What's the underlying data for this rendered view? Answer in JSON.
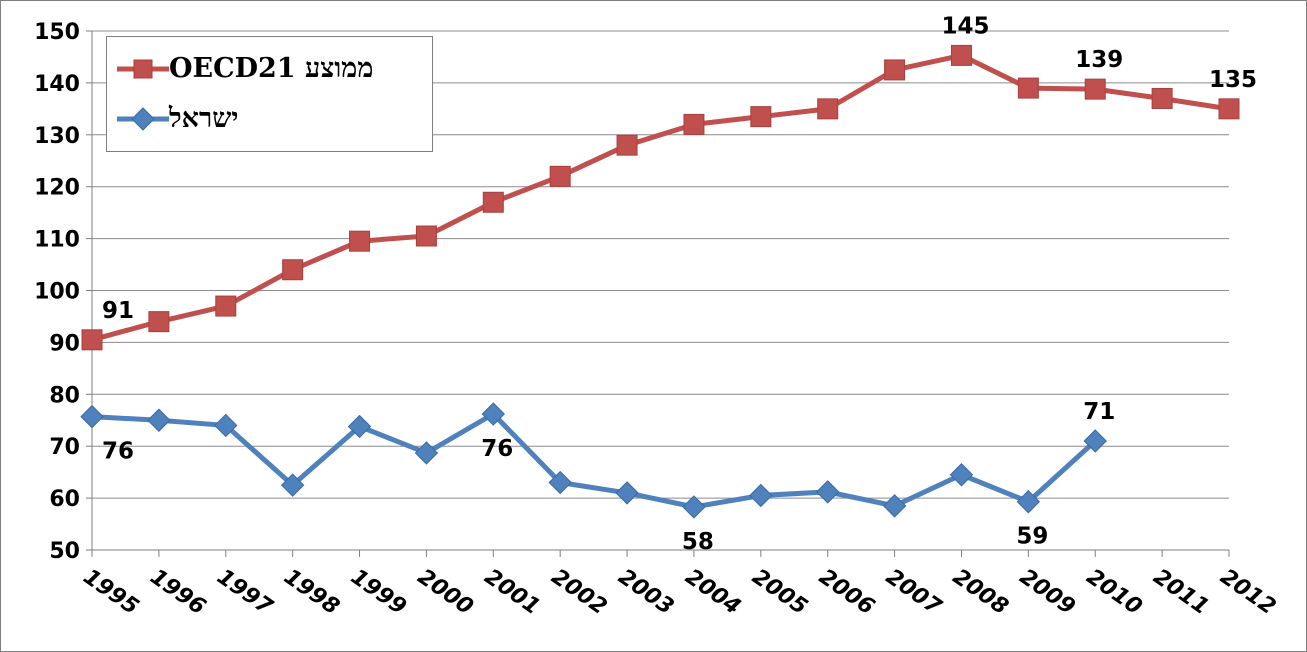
{
  "chart_data": {
    "type": "line",
    "title": "",
    "xlabel": "",
    "ylabel": "",
    "x": [
      "1995",
      "1996",
      "1997",
      "1998",
      "1999",
      "2000",
      "2001",
      "2002",
      "2003",
      "2004",
      "2005",
      "2006",
      "2007",
      "2008",
      "2009",
      "2010",
      "2011",
      "2012"
    ],
    "ylim": [
      50,
      150
    ],
    "yticks": [
      "50",
      "60",
      "70",
      "80",
      "90",
      "100",
      "110",
      "120",
      "130",
      "140",
      "150"
    ],
    "grid": "horizontal",
    "legend_position": "top-left",
    "series": [
      {
        "name": "ממוצע OECD21",
        "color": "#c0504d",
        "marker": "square",
        "values": [
          90.5,
          94,
          97,
          104,
          109.5,
          110.5,
          117,
          122,
          128,
          132,
          133.5,
          135,
          142.5,
          145.3,
          139,
          138.8,
          137,
          135
        ],
        "data_labels": [
          {
            "index": 0,
            "text": "91",
            "position": "above"
          },
          {
            "index": 13,
            "text": "145",
            "position": "above"
          },
          {
            "index": 15,
            "text": "139",
            "position": "above"
          },
          {
            "index": 17,
            "text": "135",
            "position": "above"
          }
        ]
      },
      {
        "name": "ישראל",
        "color": "#4f81bd",
        "marker": "diamond",
        "values": [
          75.7,
          75,
          74,
          62.5,
          73.8,
          68.7,
          76.2,
          63,
          61,
          58.3,
          60.5,
          61.2,
          58.5,
          64.5,
          59.3,
          71,
          null,
          null
        ],
        "data_labels": [
          {
            "index": 0,
            "text": "76",
            "position": "below"
          },
          {
            "index": 6,
            "text": "76",
            "position": "below"
          },
          {
            "index": 9,
            "text": "58",
            "position": "below"
          },
          {
            "index": 14,
            "text": "59",
            "position": "below"
          },
          {
            "index": 15,
            "text": "71",
            "position": "above"
          }
        ]
      }
    ]
  }
}
